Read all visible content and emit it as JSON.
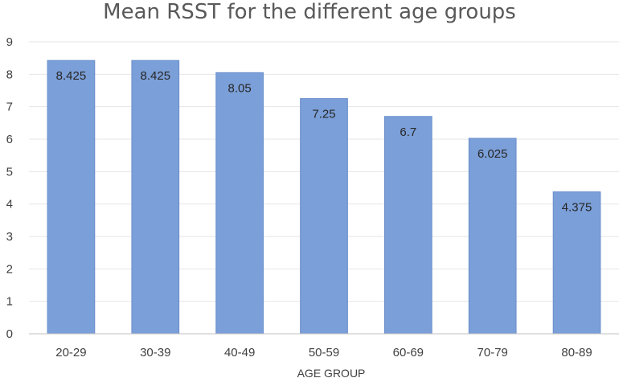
{
  "chart_data": {
    "type": "bar",
    "title": "Mean RSST for the different age groups",
    "xlabel": "AGE GROUP",
    "ylabel": "",
    "categories": [
      "20-29",
      "30-39",
      "40-49",
      "50-59",
      "60-69",
      "70-79",
      "80-89"
    ],
    "values": [
      8.425,
      8.425,
      8.05,
      7.25,
      6.7,
      6.025,
      4.375
    ],
    "data_labels": [
      "8.425",
      "8.425",
      "8.05",
      "7.25",
      "6.7",
      "6.025",
      "4.375"
    ],
    "ylim": [
      0,
      9
    ],
    "yticks": [
      "0",
      "1",
      "2",
      "3",
      "4",
      "5",
      "6",
      "7",
      "8",
      "9"
    ],
    "grid": true,
    "legend": "none",
    "bar_color": "#7b9fd8",
    "bar_edge_color": "#6a8fcb"
  }
}
